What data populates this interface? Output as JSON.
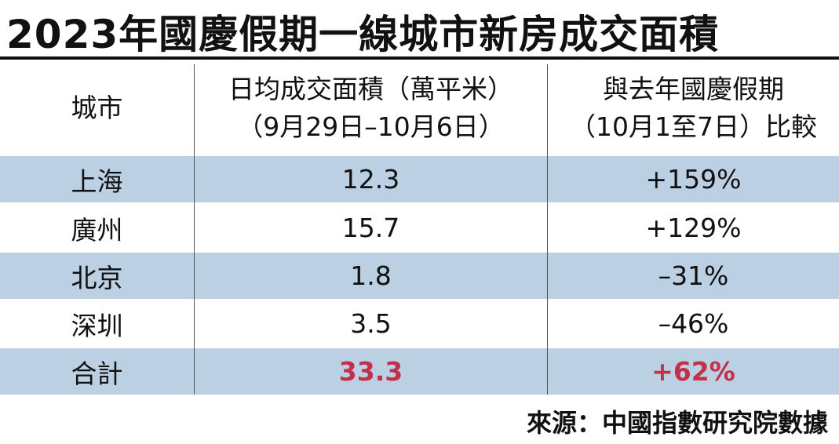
{
  "header": {
    "title": "2023年國慶假期一線城市新房成交面積"
  },
  "table": {
    "columns": [
      {
        "lines": [
          "城市"
        ]
      },
      {
        "lines": [
          "日均成交面積（萬平米）",
          "（9月29日–10月6日）"
        ]
      },
      {
        "lines": [
          "與去年國慶假期",
          "（10月1至7日）比較"
        ]
      }
    ],
    "rows": [
      [
        "上海",
        "12.3",
        "+159%"
      ],
      [
        "廣州",
        "15.7",
        "+129%"
      ],
      [
        "北京",
        "1.8",
        "–31%"
      ],
      [
        "深圳",
        "3.5",
        "–46%"
      ],
      [
        "合計",
        "33.3",
        "+62%"
      ]
    ]
  },
  "footer": {
    "source": "來源：中國指數研究院數據"
  }
}
